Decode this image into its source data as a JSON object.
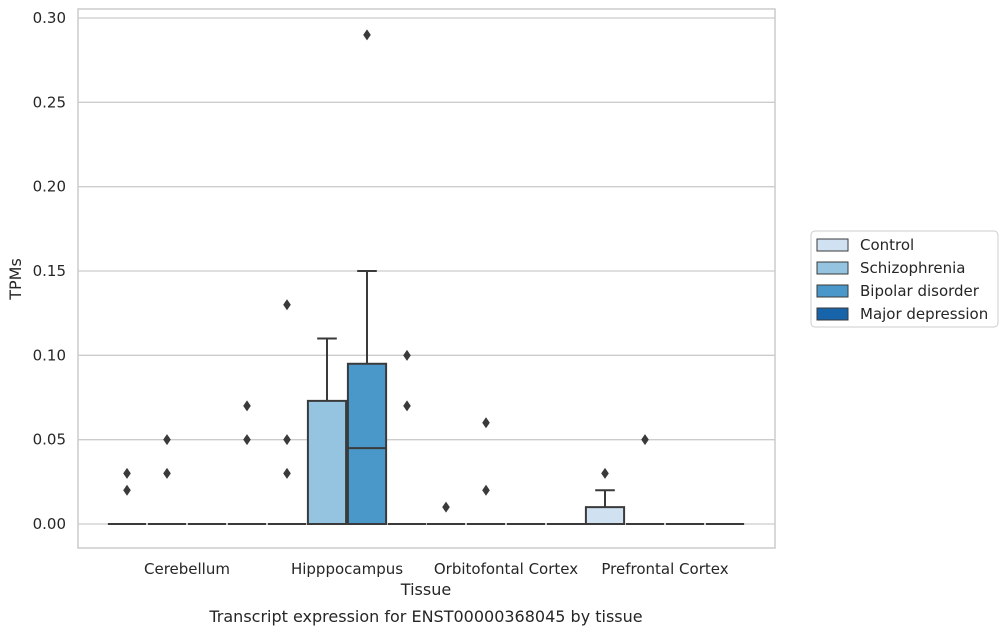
{
  "chart_data": {
    "type": "box",
    "caption": "Transcript expression for ENST00000368045 by tissue",
    "xlabel": "Tissue",
    "ylabel": "TPMs",
    "ylim": [
      -0.014,
      0.305
    ],
    "yticks": [
      "0.00",
      "0.05",
      "0.10",
      "0.15",
      "0.20",
      "0.25",
      "0.30"
    ],
    "ytick_values": [
      0,
      0.05,
      0.1,
      0.15,
      0.2,
      0.25,
      0.3
    ],
    "categories": [
      "Cerebellum",
      "Hipppocampus",
      "Orbitofontal Cortex",
      "Prefrontal Cortex"
    ],
    "grid": true,
    "legend_position": "right",
    "series": [
      {
        "name": "Control",
        "color": "#d0e1f2",
        "boxes": [
          {
            "q1": 0,
            "median": 0,
            "q3": 0,
            "whisker_low": 0,
            "whisker_high": 0,
            "outliers": [
              0.02,
              0.03
            ]
          },
          {
            "q1": 0,
            "median": 0,
            "q3": 0,
            "whisker_low": 0,
            "whisker_high": 0,
            "outliers": [
              0.03,
              0.05,
              0.13
            ]
          },
          {
            "q1": 0,
            "median": 0,
            "q3": 0,
            "whisker_low": 0,
            "whisker_high": 0,
            "outliers": [
              0.01
            ]
          },
          {
            "q1": 0,
            "median": 0,
            "q3": 0.01,
            "whisker_low": 0,
            "whisker_high": 0.02,
            "outliers": [
              0.03
            ]
          }
        ]
      },
      {
        "name": "Schizophrenia",
        "color": "#94c4df",
        "boxes": [
          {
            "q1": 0,
            "median": 0,
            "q3": 0,
            "whisker_low": 0,
            "whisker_high": 0,
            "outliers": [
              0.03,
              0.05
            ]
          },
          {
            "q1": 0,
            "median": 0,
            "q3": 0.073,
            "whisker_low": 0,
            "whisker_high": 0.11,
            "outliers": []
          },
          {
            "q1": 0,
            "median": 0,
            "q3": 0,
            "whisker_low": 0,
            "whisker_high": 0,
            "outliers": [
              0.02,
              0.06
            ]
          },
          {
            "q1": 0,
            "median": 0,
            "q3": 0,
            "whisker_low": 0,
            "whisker_high": 0,
            "outliers": [
              0.05
            ]
          }
        ]
      },
      {
        "name": "Bipolar disorder",
        "color": "#4a98c9",
        "boxes": [
          {
            "q1": 0,
            "median": 0,
            "q3": 0,
            "whisker_low": 0,
            "whisker_high": 0,
            "outliers": []
          },
          {
            "q1": 0,
            "median": 0.045,
            "q3": 0.095,
            "whisker_low": 0,
            "whisker_high": 0.15,
            "outliers": [
              0.29
            ]
          },
          {
            "q1": 0,
            "median": 0,
            "q3": 0,
            "whisker_low": 0,
            "whisker_high": 0,
            "outliers": []
          },
          {
            "q1": 0,
            "median": 0,
            "q3": 0,
            "whisker_low": 0,
            "whisker_high": 0,
            "outliers": []
          }
        ]
      },
      {
        "name": "Major depression",
        "color": "#1764ab",
        "boxes": [
          {
            "q1": 0,
            "median": 0,
            "q3": 0,
            "whisker_low": 0,
            "whisker_high": 0,
            "outliers": [
              0.05,
              0.07
            ]
          },
          {
            "q1": 0,
            "median": 0,
            "q3": 0,
            "whisker_low": 0,
            "whisker_high": 0,
            "outliers": [
              0.07,
              0.1
            ]
          },
          {
            "q1": 0,
            "median": 0,
            "q3": 0,
            "whisker_low": 0,
            "whisker_high": 0,
            "outliers": []
          },
          {
            "q1": 0,
            "median": 0,
            "q3": 0,
            "whisker_low": 0,
            "whisker_high": 0,
            "outliers": []
          }
        ]
      }
    ]
  }
}
